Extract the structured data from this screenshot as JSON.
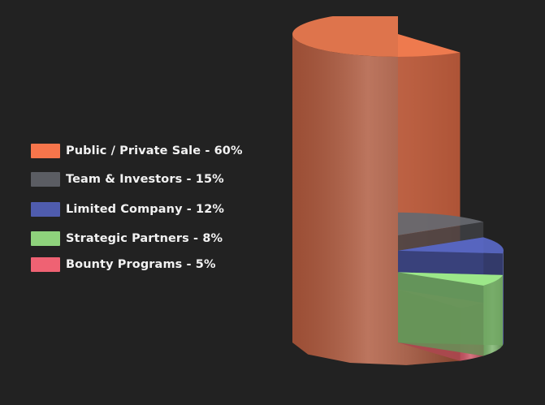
{
  "chart_data": {
    "type": "pie",
    "title": "",
    "categories": [
      "Public / Private Sale",
      "Team & Investors",
      "Limited Company",
      "Strategic Partners",
      "Bounty Programs"
    ],
    "values": [
      60,
      15,
      12,
      8,
      5
    ],
    "unit": "%",
    "legend_labels": [
      "Public / Private Sale - 60%",
      "Team & Investors - 15%",
      "Limited Company - 12%",
      "Strategic Partners - 8%",
      "Bounty Programs - 5%"
    ],
    "colors": [
      "#f7754b",
      "#5b5d63",
      "#4f5cae",
      "#8ed27c",
      "#ef6273"
    ],
    "legend_position": "left",
    "style": "3d-stepped-cylinder"
  }
}
